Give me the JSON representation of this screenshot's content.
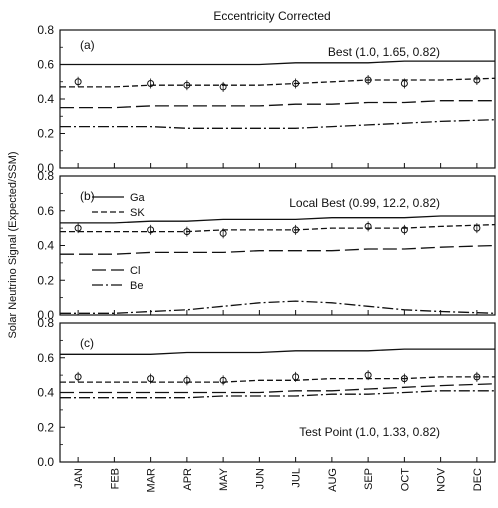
{
  "figure": {
    "title": "Eccentricity Corrected",
    "ylabel": "Solar Neutrino Signal (Expected/SSM)"
  },
  "chart_data": [
    {
      "type": "line",
      "panel_label": "(a)",
      "annotation": "Best (1.0, 1.65, 0.82)",
      "categories": [
        "JAN",
        "FEB",
        "MAR",
        "APR",
        "MAY",
        "JUN",
        "JUL",
        "AUG",
        "SEP",
        "OCT",
        "NOV",
        "DEC"
      ],
      "ylim": [
        0.0,
        0.8
      ],
      "yticks": [
        "0.0",
        "0.2",
        "0.4",
        "0.6",
        "0.8"
      ],
      "grid": false,
      "series": [
        {
          "style": "solid",
          "values": [
            0.6,
            0.6,
            0.6,
            0.6,
            0.6,
            0.6,
            0.61,
            0.61,
            0.61,
            0.62,
            0.62,
            0.62
          ]
        },
        {
          "style": "short-dash",
          "values": [
            0.47,
            0.47,
            0.48,
            0.48,
            0.48,
            0.48,
            0.49,
            0.5,
            0.51,
            0.51,
            0.51,
            0.52
          ]
        },
        {
          "style": "long-dash",
          "values": [
            0.35,
            0.35,
            0.36,
            0.36,
            0.36,
            0.36,
            0.37,
            0.37,
            0.38,
            0.38,
            0.39,
            0.39
          ]
        },
        {
          "style": "dash-dot",
          "values": [
            0.24,
            0.24,
            0.24,
            0.23,
            0.23,
            0.23,
            0.23,
            0.24,
            0.25,
            0.26,
            0.27,
            0.28
          ]
        },
        {
          "style": "markers",
          "values": [
            0.5,
            null,
            0.49,
            0.48,
            0.47,
            null,
            0.49,
            null,
            0.51,
            0.49,
            null,
            0.51
          ]
        }
      ]
    },
    {
      "type": "line",
      "panel_label": "(b)",
      "annotation": "Local Best (0.99, 12.2, 0.82)",
      "legend": [
        {
          "name": "Ga",
          "style": "solid"
        },
        {
          "name": "SK",
          "style": "short-dash"
        },
        {
          "name": "Cl",
          "style": "long-dash"
        },
        {
          "name": "Be",
          "style": "dash-dot"
        }
      ],
      "categories": [
        "JAN",
        "FEB",
        "MAR",
        "APR",
        "MAY",
        "JUN",
        "JUL",
        "AUG",
        "SEP",
        "OCT",
        "NOV",
        "DEC"
      ],
      "ylim": [
        0.0,
        0.8
      ],
      "yticks": [
        "0.0",
        "0.2",
        "0.4",
        "0.6",
        "0.8"
      ],
      "grid": false,
      "series": [
        {
          "style": "solid",
          "values": [
            0.53,
            0.53,
            0.54,
            0.54,
            0.55,
            0.55,
            0.55,
            0.56,
            0.56,
            0.56,
            0.57,
            0.57
          ]
        },
        {
          "style": "short-dash",
          "values": [
            0.48,
            0.48,
            0.48,
            0.48,
            0.49,
            0.49,
            0.49,
            0.5,
            0.5,
            0.5,
            0.51,
            0.52
          ]
        },
        {
          "style": "long-dash",
          "values": [
            0.35,
            0.35,
            0.36,
            0.36,
            0.36,
            0.37,
            0.37,
            0.37,
            0.38,
            0.38,
            0.39,
            0.4
          ]
        },
        {
          "style": "dash-dot",
          "values": [
            0.01,
            0.01,
            0.02,
            0.03,
            0.05,
            0.07,
            0.08,
            0.07,
            0.05,
            0.03,
            0.02,
            0.01
          ]
        },
        {
          "style": "markers",
          "values": [
            0.5,
            null,
            0.49,
            0.48,
            0.47,
            null,
            0.49,
            null,
            0.51,
            0.49,
            null,
            0.5
          ]
        }
      ]
    },
    {
      "type": "line",
      "panel_label": "(c)",
      "annotation": "Test Point (1.0, 1.33, 0.82)",
      "categories": [
        "JAN",
        "FEB",
        "MAR",
        "APR",
        "MAY",
        "JUN",
        "JUL",
        "AUG",
        "SEP",
        "OCT",
        "NOV",
        "DEC"
      ],
      "ylim": [
        0.0,
        0.8
      ],
      "yticks": [
        "0.0",
        "0.2",
        "0.4",
        "0.6",
        "0.8"
      ],
      "grid": false,
      "series": [
        {
          "style": "solid",
          "values": [
            0.62,
            0.62,
            0.62,
            0.63,
            0.63,
            0.63,
            0.64,
            0.64,
            0.64,
            0.65,
            0.65,
            0.65
          ]
        },
        {
          "style": "short-dash",
          "values": [
            0.46,
            0.46,
            0.46,
            0.46,
            0.46,
            0.47,
            0.47,
            0.48,
            0.48,
            0.48,
            0.49,
            0.49
          ]
        },
        {
          "style": "long-dash",
          "values": [
            0.4,
            0.4,
            0.4,
            0.4,
            0.4,
            0.4,
            0.41,
            0.41,
            0.42,
            0.43,
            0.44,
            0.45
          ]
        },
        {
          "style": "dash-dot",
          "values": [
            0.37,
            0.37,
            0.37,
            0.37,
            0.38,
            0.38,
            0.38,
            0.39,
            0.39,
            0.4,
            0.41,
            0.41
          ]
        },
        {
          "style": "markers",
          "values": [
            0.49,
            null,
            0.48,
            0.47,
            0.47,
            null,
            0.49,
            null,
            0.5,
            0.48,
            null,
            0.49
          ]
        }
      ]
    }
  ]
}
